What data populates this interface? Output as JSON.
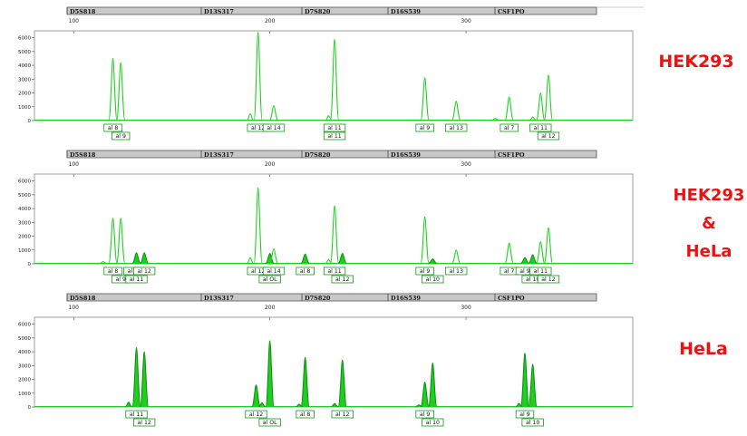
{
  "colors": {
    "trace": "#1fcf1f",
    "trace_dark": "#109010",
    "label_border": "#119911",
    "marker_bar": "#c8c8c8",
    "sample_text": "#ee1111"
  },
  "markers": [
    "D5S818",
    "D13S317",
    "D7S820",
    "D16S539",
    "CSF1PO"
  ],
  "x_ticks": [
    100,
    200,
    300
  ],
  "y_ticks": [
    0,
    1000,
    2000,
    3000,
    4000,
    5000,
    6000
  ],
  "samples": [
    {
      "label_lines": [
        "HEK293"
      ]
    },
    {
      "label_lines": [
        "HEK293",
        "&",
        "HeLa"
      ]
    },
    {
      "label_lines": [
        "HeLa"
      ]
    }
  ],
  "chart_data": [
    {
      "type": "line",
      "sample": "HEK293",
      "x_range": [
        80,
        385
      ],
      "y_range": [
        0,
        6500
      ],
      "filled": false,
      "peaks": [
        {
          "x": 120,
          "h": 4500
        },
        {
          "x": 124,
          "h": 4200
        },
        {
          "x": 194,
          "h": 6400
        },
        {
          "x": 202,
          "h": 1100
        },
        {
          "x": 233,
          "h": 5900
        },
        {
          "x": 279,
          "h": 3100
        },
        {
          "x": 295,
          "h": 1400
        },
        {
          "x": 322,
          "h": 1700
        },
        {
          "x": 338,
          "h": 2000
        },
        {
          "x": 342,
          "h": 3300
        }
      ],
      "minor_peaks": [
        {
          "x": 190,
          "h": 500
        },
        {
          "x": 230,
          "h": 350
        },
        {
          "x": 315,
          "h": 150
        },
        {
          "x": 334,
          "h": 250
        }
      ],
      "allele_rows": [
        [
          {
            "x": 120,
            "text": "al 8"
          },
          {
            "x": 194,
            "text": "al 12"
          },
          {
            "x": 202,
            "text": "al 14"
          },
          {
            "x": 233,
            "text": "al 11"
          },
          {
            "x": 279,
            "text": "al 9"
          },
          {
            "x": 295,
            "text": "al 13"
          },
          {
            "x": 322,
            "text": "al 7"
          },
          {
            "x": 338,
            "text": "al 11"
          }
        ],
        [
          {
            "x": 124,
            "text": "al 9"
          },
          {
            "x": 233,
            "text": "al 11"
          },
          {
            "x": 342,
            "text": "al 12"
          }
        ]
      ]
    },
    {
      "type": "line",
      "sample": "HEK293 & HeLa",
      "x_range": [
        80,
        385
      ],
      "y_range": [
        0,
        6500
      ],
      "filled": false,
      "peaks": [
        {
          "x": 120,
          "h": 3300
        },
        {
          "x": 124,
          "h": 3300
        },
        {
          "x": 132,
          "h": 800,
          "fill": true
        },
        {
          "x": 136,
          "h": 800,
          "fill": true
        },
        {
          "x": 194,
          "h": 5500
        },
        {
          "x": 200,
          "h": 750,
          "fill": true
        },
        {
          "x": 202,
          "h": 1100
        },
        {
          "x": 218,
          "h": 700,
          "fill": true
        },
        {
          "x": 233,
          "h": 4200
        },
        {
          "x": 237,
          "h": 750,
          "fill": true
        },
        {
          "x": 279,
          "h": 3400
        },
        {
          "x": 283,
          "h": 350,
          "fill": true
        },
        {
          "x": 295,
          "h": 1000
        },
        {
          "x": 322,
          "h": 1500
        },
        {
          "x": 330,
          "h": 450,
          "fill": true
        },
        {
          "x": 334,
          "h": 650,
          "fill": true
        },
        {
          "x": 338,
          "h": 1600
        },
        {
          "x": 342,
          "h": 2600
        }
      ],
      "minor_peaks": [
        {
          "x": 190,
          "h": 450
        },
        {
          "x": 230,
          "h": 300
        },
        {
          "x": 115,
          "h": 150
        }
      ],
      "allele_rows": [
        [
          {
            "x": 120,
            "text": "al 8"
          },
          {
            "x": 131,
            "text": "al 10"
          },
          {
            "x": 136,
            "text": "al 12"
          },
          {
            "x": 194,
            "text": "al 12"
          },
          {
            "x": 202,
            "text": "al 14"
          },
          {
            "x": 218,
            "text": "al 8"
          },
          {
            "x": 233,
            "text": "al 11"
          },
          {
            "x": 279,
            "text": "al 9"
          },
          {
            "x": 295,
            "text": "al 13"
          },
          {
            "x": 322,
            "text": "al 7"
          },
          {
            "x": 330,
            "text": "al 9"
          },
          {
            "x": 338,
            "text": "al 11"
          }
        ],
        [
          {
            "x": 124,
            "text": "al 9"
          },
          {
            "x": 132,
            "text": "al 11"
          },
          {
            "x": 200,
            "text": "al OL"
          },
          {
            "x": 237,
            "text": "al 12"
          },
          {
            "x": 283,
            "text": "al 10"
          },
          {
            "x": 334,
            "text": "al 10"
          },
          {
            "x": 342,
            "text": "al 12"
          }
        ]
      ]
    },
    {
      "type": "line",
      "sample": "HeLa",
      "x_range": [
        80,
        385
      ],
      "y_range": [
        0,
        6500
      ],
      "filled": true,
      "peaks": [
        {
          "x": 132,
          "h": 4300
        },
        {
          "x": 136,
          "h": 4000
        },
        {
          "x": 193,
          "h": 1600
        },
        {
          "x": 200,
          "h": 4800
        },
        {
          "x": 218,
          "h": 3600
        },
        {
          "x": 237,
          "h": 3400
        },
        {
          "x": 279,
          "h": 1800
        },
        {
          "x": 283,
          "h": 3200
        },
        {
          "x": 330,
          "h": 3900
        },
        {
          "x": 334,
          "h": 3100
        }
      ],
      "minor_peaks": [
        {
          "x": 128,
          "h": 350
        },
        {
          "x": 196,
          "h": 300
        },
        {
          "x": 215,
          "h": 200
        },
        {
          "x": 233,
          "h": 250
        },
        {
          "x": 276,
          "h": 150
        },
        {
          "x": 327,
          "h": 250
        }
      ],
      "allele_rows": [
        [
          {
            "x": 132,
            "text": "al 11"
          },
          {
            "x": 193,
            "text": "al 12"
          },
          {
            "x": 218,
            "text": "al 8"
          },
          {
            "x": 237,
            "text": "al 12"
          },
          {
            "x": 279,
            "text": "al 9"
          },
          {
            "x": 330,
            "text": "al 9"
          }
        ],
        [
          {
            "x": 136,
            "text": "al 12"
          },
          {
            "x": 200,
            "text": "al OL"
          },
          {
            "x": 283,
            "text": "al 10"
          },
          {
            "x": 334,
            "text": "al 10"
          }
        ]
      ]
    }
  ]
}
